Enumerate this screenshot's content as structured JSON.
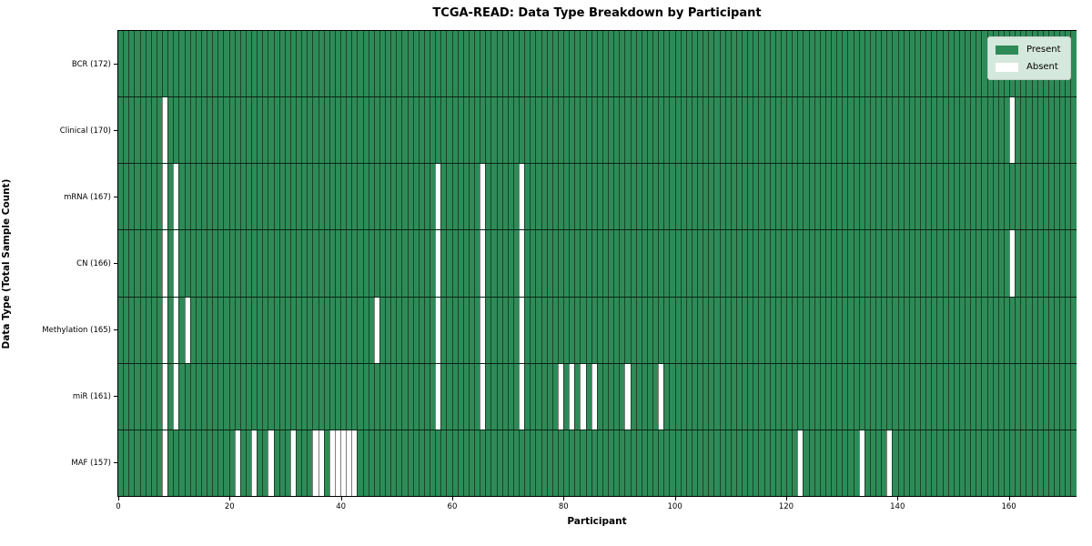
{
  "chart_data": {
    "type": "heatmap",
    "title": "TCGA-READ: Data Type Breakdown by Participant",
    "xlabel": "Participant",
    "ylabel": "Data Type (Total Sample Count)",
    "n_participants": 172,
    "x_axis": {
      "min": 0,
      "max": 172,
      "ticks": [
        0,
        20,
        40,
        60,
        80,
        100,
        120,
        140,
        160
      ]
    },
    "grid": "cell-borders",
    "legend_position": "upper right",
    "legend": [
      {
        "label": "Present",
        "color": "#2e8b57"
      },
      {
        "label": "Absent",
        "color": "#ffffff"
      }
    ],
    "colors": {
      "present": "#2e8b57",
      "absent": "#ffffff"
    },
    "rows": [
      {
        "label": "BCR (172)",
        "data_type": "BCR",
        "total": 172,
        "absent_participants": []
      },
      {
        "label": "Clinical (170)",
        "data_type": "Clinical",
        "total": 170,
        "absent_participants": [
          8,
          160
        ]
      },
      {
        "label": "mRNA (167)",
        "data_type": "mRNA",
        "total": 167,
        "absent_participants": [
          8,
          10,
          57,
          65,
          72
        ]
      },
      {
        "label": "CN (166)",
        "data_type": "CN",
        "total": 166,
        "absent_participants": [
          8,
          10,
          57,
          65,
          72,
          160
        ]
      },
      {
        "label": "Methylation (165)",
        "data_type": "Methylation",
        "total": 165,
        "absent_participants": [
          8,
          10,
          12,
          46,
          57,
          65,
          72
        ]
      },
      {
        "label": "miR (161)",
        "data_type": "miR",
        "total": 161,
        "absent_participants": [
          8,
          10,
          57,
          65,
          72,
          79,
          81,
          83,
          85,
          91,
          97
        ]
      },
      {
        "label": "MAF (157)",
        "data_type": "MAF",
        "total": 157,
        "absent_participants": [
          8,
          21,
          24,
          27,
          31,
          35,
          36,
          38,
          39,
          40,
          41,
          42,
          122,
          133,
          138
        ]
      }
    ]
  }
}
